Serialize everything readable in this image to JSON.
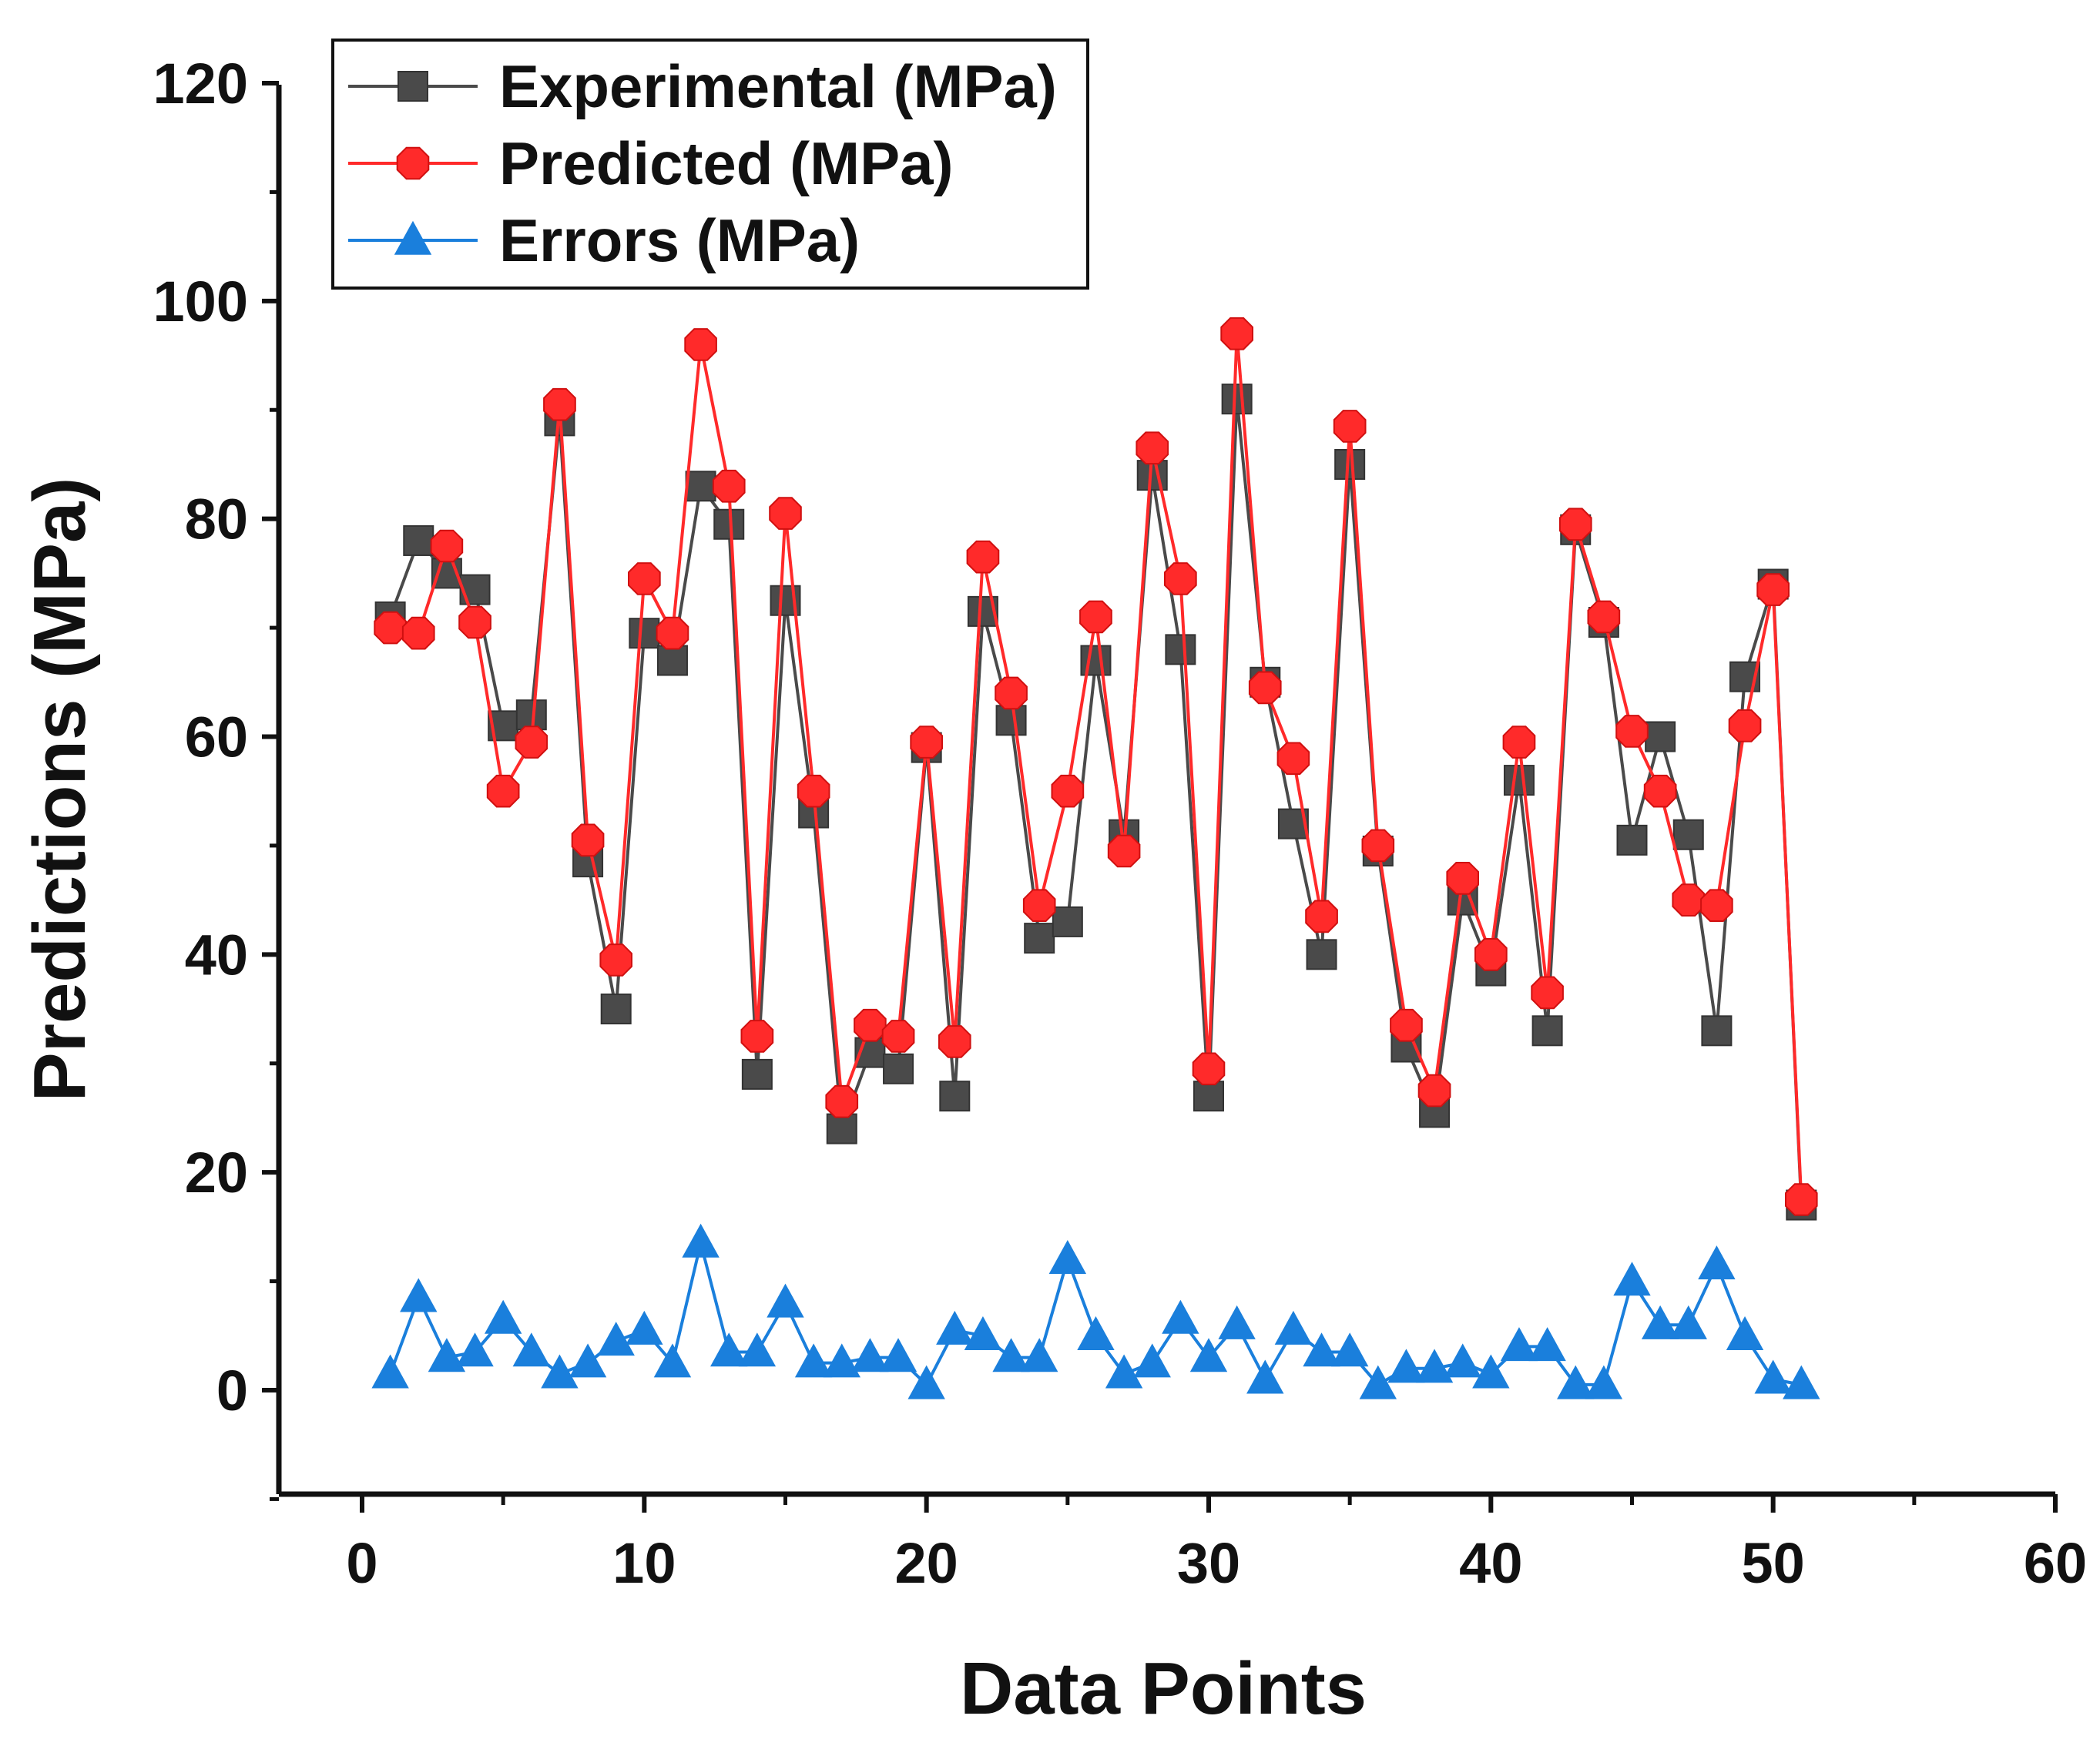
{
  "chart_data": {
    "type": "line",
    "title": "",
    "xlabel": "Data Points",
    "ylabel": "Predictions (MPa)",
    "xlim": [
      -3,
      60
    ],
    "ylim": [
      -10,
      120
    ],
    "xticks": [
      0,
      10,
      20,
      30,
      40,
      50,
      60
    ],
    "yticks": [
      0,
      20,
      40,
      60,
      80,
      100,
      120
    ],
    "xtick_labels": [
      "0",
      "10",
      "20",
      "30",
      "40",
      "50",
      "60"
    ],
    "ytick_labels": [
      "0",
      "20",
      "40",
      "60",
      "80",
      "100",
      "120"
    ],
    "legend_position": "top-left",
    "grid": false,
    "x": [
      1,
      2,
      3,
      4,
      5,
      6,
      7,
      8,
      9,
      10,
      11,
      12,
      13,
      14,
      15,
      16,
      17,
      18,
      19,
      20,
      21,
      22,
      23,
      24,
      25,
      26,
      27,
      28,
      29,
      30,
      31,
      32,
      33,
      34,
      35,
      36,
      37,
      38,
      39,
      40,
      41,
      42,
      43,
      44,
      45,
      46,
      47,
      48,
      49,
      50,
      51
    ],
    "series": [
      {
        "name": "Experimental (MPa)",
        "color": "#4a4a4a",
        "marker": "square",
        "values": [
          71,
          78,
          75,
          73.5,
          61,
          62,
          89,
          48.5,
          35,
          69.5,
          67,
          83,
          79.5,
          29,
          72.5,
          53,
          24,
          31,
          29.5,
          59,
          27,
          71.5,
          61.5,
          41.5,
          43,
          67,
          51,
          84,
          68,
          27,
          91,
          65,
          52,
          40,
          85,
          49.5,
          31.5,
          25.5,
          45,
          38.5,
          56,
          33,
          79,
          70.5,
          50.5,
          60,
          51,
          33,
          65.5,
          74,
          17
        ]
      },
      {
        "name": "Predicted (MPa)",
        "color": "#ff2a2a",
        "marker": "octagon",
        "values": [
          70,
          69.5,
          77.5,
          70.5,
          55,
          59.5,
          90.5,
          50.5,
          39.5,
          74.5,
          69.5,
          96,
          83,
          32.5,
          80.5,
          55,
          26.5,
          33.5,
          32.5,
          59.5,
          32,
          76.5,
          64,
          44.5,
          55,
          71,
          49.5,
          86.5,
          74.5,
          29.5,
          97,
          64.5,
          58,
          43.5,
          88.5,
          50,
          33.5,
          27.5,
          47,
          40,
          59.5,
          36.5,
          79.5,
          71,
          60.5,
          55,
          45,
          44.5,
          61,
          73.5,
          17.5
        ]
      },
      {
        "name": "Errors (MPa)",
        "color": "#1a7fdc",
        "marker": "triangle",
        "values": [
          1.5,
          8.5,
          3,
          3.5,
          6.5,
          3.5,
          1.5,
          2.5,
          4.5,
          5.5,
          2.5,
          13.5,
          3.5,
          3.5,
          8,
          2.5,
          2.5,
          3,
          3,
          0.5,
          5.5,
          5,
          3,
          3,
          12,
          5,
          1.5,
          2.5,
          6.5,
          3,
          6,
          1,
          5.5,
          3.5,
          3.5,
          0.5,
          2,
          2,
          2.5,
          1.5,
          4,
          4,
          0.5,
          0.5,
          10,
          6,
          6,
          11.5,
          5,
          1,
          0.5
        ]
      }
    ]
  }
}
